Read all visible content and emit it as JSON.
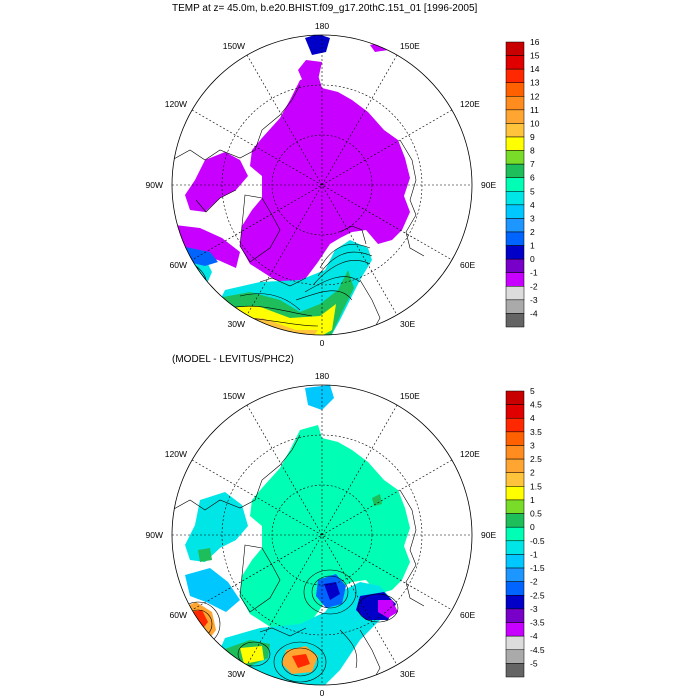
{
  "panels": [
    {
      "title": "TEMP at z=  45.0m, b.e20.BHIST.f09_g17.20thC.151_01 [1996-2005]",
      "lon_labels": [
        "180",
        "150E",
        "120E",
        "90E",
        "60E",
        "30E",
        "0",
        "30W",
        "60W",
        "90W",
        "120W",
        "150W"
      ],
      "colorbar": {
        "labels": [
          "16",
          "15",
          "14",
          "13",
          "12",
          "11",
          "10",
          "9",
          "8",
          "7",
          "6",
          "5",
          "4",
          "3",
          "2",
          "1",
          "0",
          "-1",
          "-2",
          "-3",
          "-4"
        ],
        "colors": [
          "#c80000",
          "#e00000",
          "#ff2800",
          "#ff6000",
          "#ff8c1e",
          "#ffa532",
          "#ffc43c",
          "#ffff00",
          "#78dc28",
          "#1ebe5a",
          "#00ffb4",
          "#00e6e6",
          "#00c8ff",
          "#1e96ff",
          "#0064ff",
          "#0000c8",
          "#7800c8",
          "#c800ff",
          "#dcdcdc",
          "#aaaaaa",
          "#646464"
        ]
      }
    },
    {
      "title": "(MODEL - LEVITUS/PHC2)",
      "lon_labels": [
        "180",
        "150E",
        "120E",
        "90E",
        "60E",
        "30E",
        "0",
        "30W",
        "60W",
        "90W",
        "120W",
        "150W"
      ],
      "colorbar": {
        "labels": [
          "5",
          "4.5",
          "4",
          "3.5",
          "3",
          "2.5",
          "2",
          "1.5",
          "1",
          "0.5",
          "0",
          "-0.5",
          "-1",
          "-1.5",
          "-2",
          "-2.5",
          "-3",
          "-3.5",
          "-4",
          "-4.5",
          "-5"
        ],
        "colors": [
          "#c80000",
          "#e00000",
          "#ff2800",
          "#ff6000",
          "#ff8c1e",
          "#ffa532",
          "#ffc43c",
          "#ffff00",
          "#78dc28",
          "#1ebe5a",
          "#00ffb4",
          "#00e6e6",
          "#00c8ff",
          "#1e96ff",
          "#0064ff",
          "#0000c8",
          "#7800c8",
          "#c800ff",
          "#dcdcdc",
          "#aaaaaa",
          "#646464"
        ]
      }
    }
  ]
}
